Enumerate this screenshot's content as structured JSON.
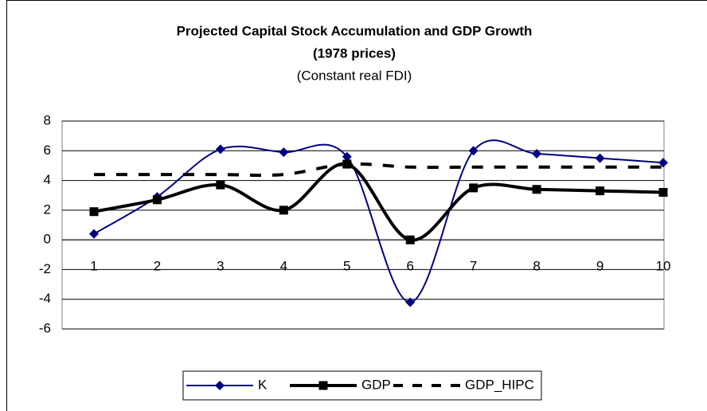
{
  "chart_data": {
    "type": "line",
    "title": [
      "Projected Capital Stock Accumulation and GDP Growth",
      "(1978 prices)"
    ],
    "subtitle": "(Constant real FDI)",
    "categories": [
      "1",
      "2",
      "3",
      "4",
      "5",
      "6",
      "7",
      "8",
      "9",
      "10"
    ],
    "series": [
      {
        "name": "K",
        "color": "#000080",
        "marker": "diamond",
        "values": [
          0.4,
          2.9,
          6.1,
          5.9,
          5.6,
          -4.2,
          6.0,
          5.8,
          5.5,
          5.2
        ]
      },
      {
        "name": "GDP",
        "color": "#000000",
        "marker": "square",
        "values": [
          1.9,
          2.7,
          3.7,
          2.0,
          5.1,
          0.0,
          3.5,
          3.4,
          3.3,
          3.2
        ]
      },
      {
        "name": "GDP_HIPC",
        "color": "#000000",
        "dashed": true,
        "values": [
          4.4,
          4.4,
          4.4,
          4.4,
          5.1,
          4.9,
          4.9,
          4.9,
          4.9,
          4.9
        ]
      }
    ],
    "ylim": [
      -6,
      8
    ],
    "yticks": [
      -6,
      -4,
      -2,
      0,
      2,
      4,
      6,
      8
    ],
    "grid": true,
    "smooth": true,
    "legend": "bottom"
  }
}
